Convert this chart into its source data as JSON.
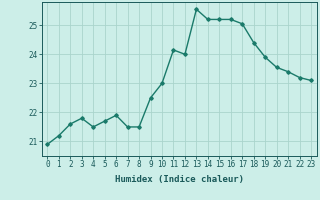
{
  "x": [
    0,
    1,
    2,
    3,
    4,
    5,
    6,
    7,
    8,
    9,
    10,
    11,
    12,
    13,
    14,
    15,
    16,
    17,
    18,
    19,
    20,
    21,
    22,
    23
  ],
  "y": [
    20.9,
    21.2,
    21.6,
    21.8,
    21.5,
    21.7,
    21.9,
    21.5,
    21.5,
    22.5,
    23.0,
    24.15,
    24.0,
    25.55,
    25.2,
    25.2,
    25.2,
    25.05,
    24.4,
    23.9,
    23.55,
    23.4,
    23.2,
    23.1
  ],
  "line_color": "#1a7a6a",
  "marker": "D",
  "marker_size": 1.8,
  "bg_color": "#cceee8",
  "grid_color": "#aad4cc",
  "axis_color": "#1a5a5a",
  "xlabel": "Humidex (Indice chaleur)",
  "xlim": [
    -0.5,
    23.5
  ],
  "ylim": [
    20.5,
    25.8
  ],
  "yticks": [
    21,
    22,
    23,
    24,
    25
  ],
  "xticks": [
    0,
    1,
    2,
    3,
    4,
    5,
    6,
    7,
    8,
    9,
    10,
    11,
    12,
    13,
    14,
    15,
    16,
    17,
    18,
    19,
    20,
    21,
    22,
    23
  ],
  "xlabel_fontsize": 6.5,
  "tick_fontsize": 5.5,
  "linewidth": 1.0
}
